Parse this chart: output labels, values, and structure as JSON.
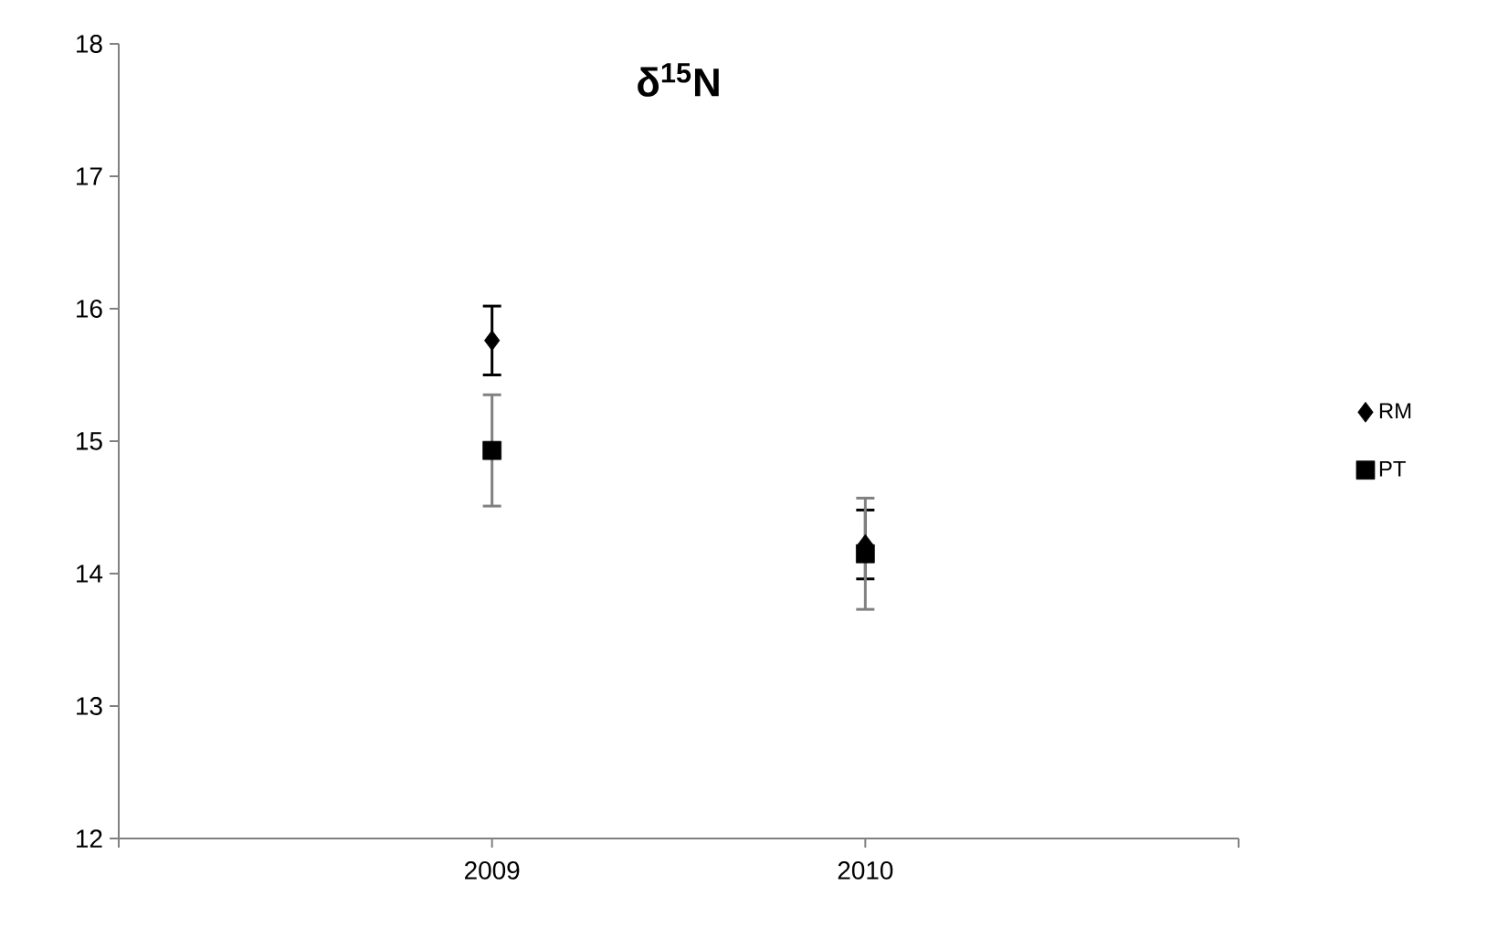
{
  "chart_data": {
    "type": "scatter",
    "title": "**δ$^{15}$N**",
    "categories": [
      "2009",
      "2010"
    ],
    "series": [
      {
        "name": "RM",
        "color": "#000000",
        "marker": "diamond",
        "values": [
          15.76,
          14.22
        ],
        "errors": [
          0.26,
          0.26
        ]
      },
      {
        "name": "PT",
        "color": "#000000",
        "marker": "square",
        "values": [
          14.93,
          14.15
        ],
        "errors": [
          0.42,
          0.42
        ]
      }
    ],
    "ylim": [
      12,
      18
    ],
    "yticks": [
      12,
      13,
      14,
      15,
      16,
      17,
      18
    ],
    "grid": false,
    "legend": "right"
  }
}
